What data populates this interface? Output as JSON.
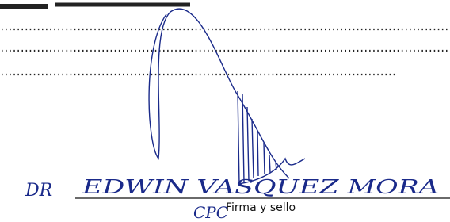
{
  "signature_block": {
    "handwritten_prefix": "DR",
    "handwritten_name": "EDWIN VASQUEZ MORA",
    "handwritten_suffix": "CPC",
    "caption": "Firma y sello"
  }
}
